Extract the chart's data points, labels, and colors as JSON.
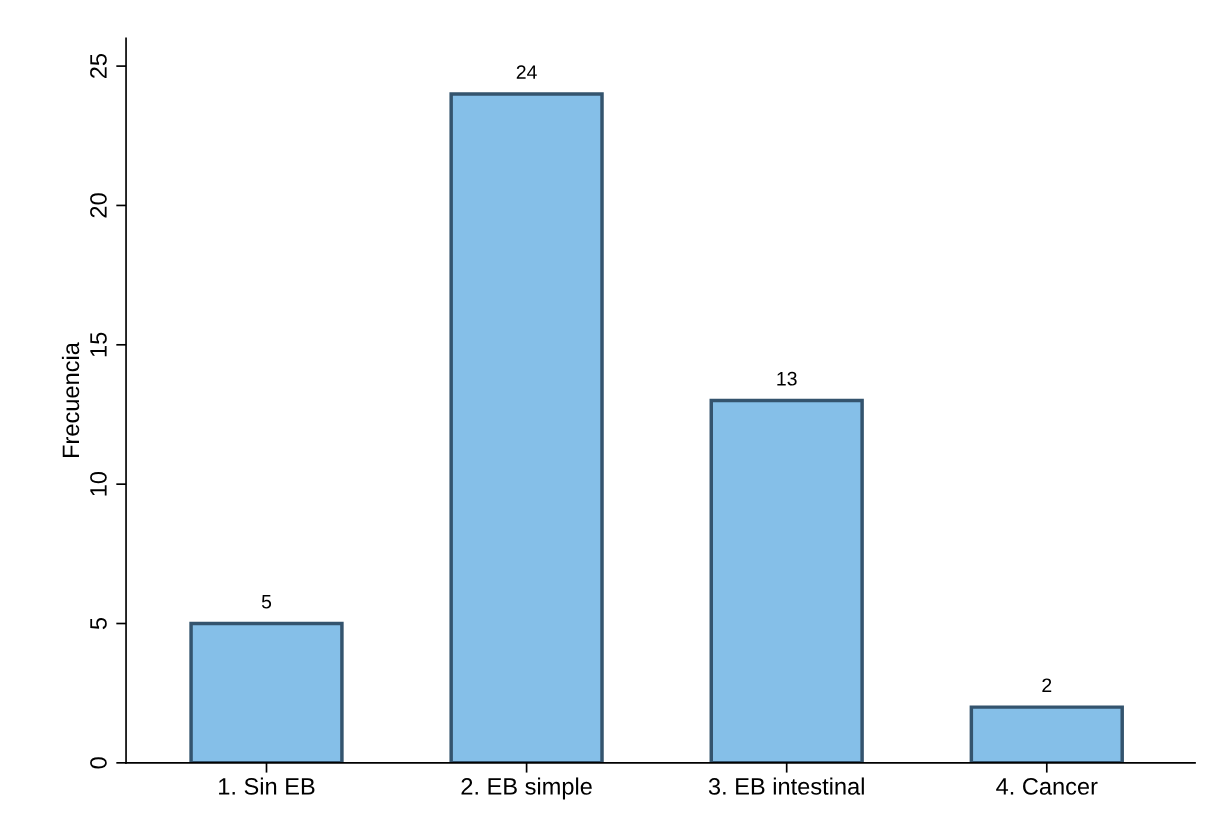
{
  "chart_data": {
    "type": "bar",
    "ylabel": "Frecuencia",
    "categories": [
      "1. Sin EB",
      "2. EB simple",
      "3. EB intestinal",
      "4. Cancer"
    ],
    "values": [
      5,
      24,
      13,
      2
    ],
    "color": "#85bfe8",
    "ylim": [
      0,
      26
    ],
    "yticks": [
      0,
      5,
      10,
      15,
      20,
      25
    ],
    "grid": false,
    "data_labels": true
  }
}
